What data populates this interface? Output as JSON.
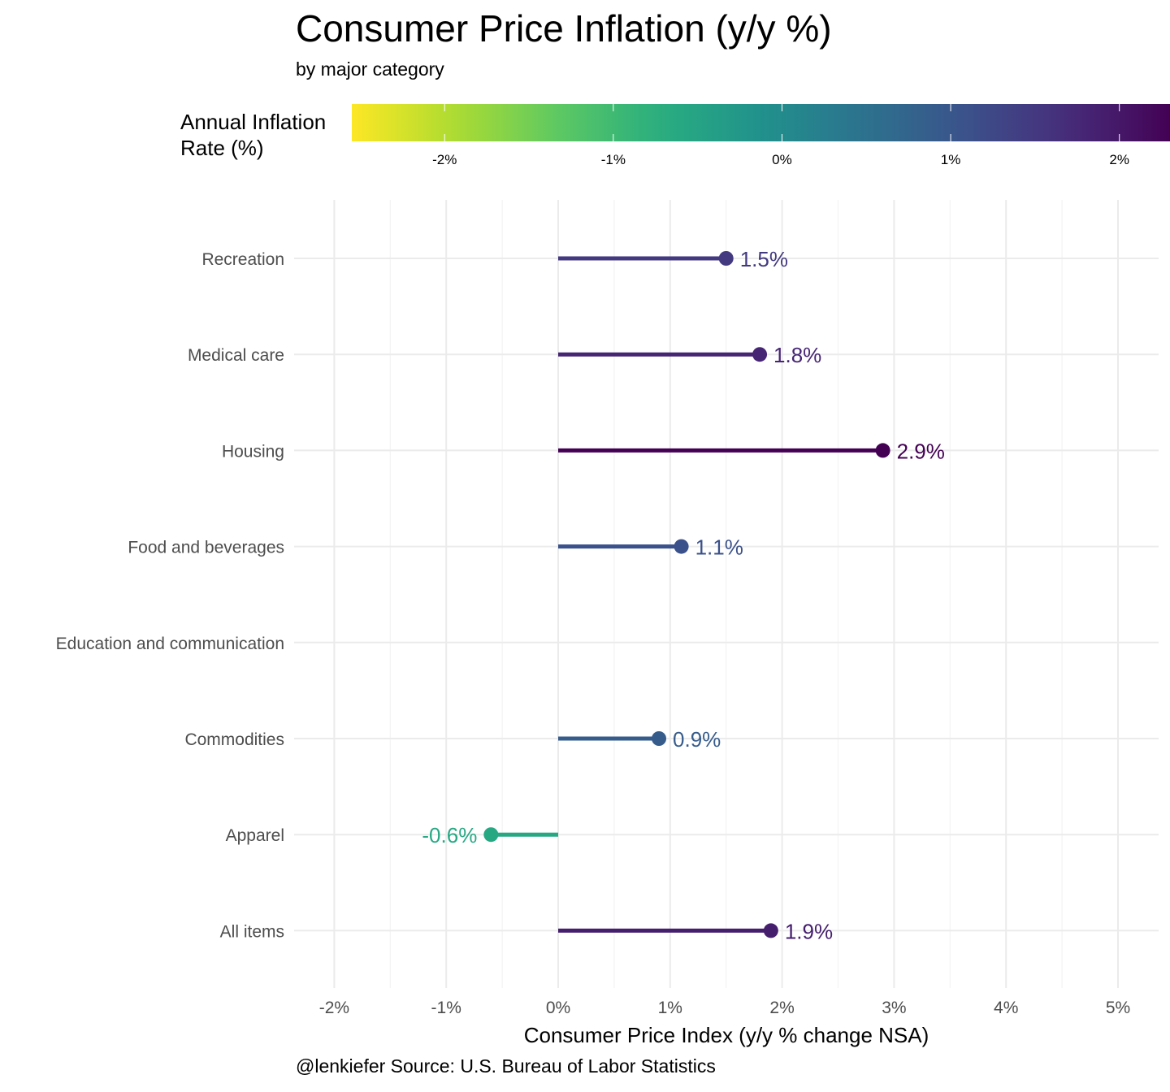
{
  "chart_data": {
    "type": "lollipop",
    "title": "Consumer Price Inflation (y/y %)",
    "subtitle": "by major category",
    "xlabel": "Consumer Price Index (y/y % change NSA)",
    "ylabel": "",
    "caption": "@lenkiefer Source: U.S. Bureau of Labor Statistics",
    "xlim": [
      -2.2,
      5.35
    ],
    "x_ticks": [
      -2,
      -1,
      0,
      1,
      2,
      3,
      4,
      5
    ],
    "x_tick_labels": [
      "-2%",
      "-1%",
      "0%",
      "1%",
      "2%",
      "3%",
      "4%",
      "5%"
    ],
    "grid": true,
    "categories": [
      "Recreation",
      "Medical care",
      "Housing",
      "Food and beverages",
      "Education and communication",
      "Commodities",
      "Apparel",
      "All items"
    ],
    "values": [
      1.5,
      1.8,
      2.9,
      1.1,
      null,
      0.9,
      -0.6,
      1.9
    ],
    "value_labels": [
      "1.5%",
      "1.8%",
      "2.9%",
      "1.1%",
      "",
      "0.9%",
      "-0.6%",
      "1.9%"
    ],
    "legend": {
      "title": "Annual Inflation Rate (%)",
      "title_lines": [
        "Annual Inflation",
        "Rate (%)"
      ],
      "placement": "top",
      "range": [
        -2.55,
        2.3
      ],
      "ticks": [
        -2,
        -1,
        0,
        1,
        2
      ],
      "tick_labels": [
        "-2%",
        "-1%",
        "0%",
        "1%",
        "2%"
      ],
      "colormap": "viridis (reversed)",
      "colors": [
        "#440154",
        "#472d7b",
        "#3b528b",
        "#2c728e",
        "#21918c",
        "#28ae80",
        "#5ec962",
        "#addc30",
        "#fde725"
      ]
    }
  }
}
